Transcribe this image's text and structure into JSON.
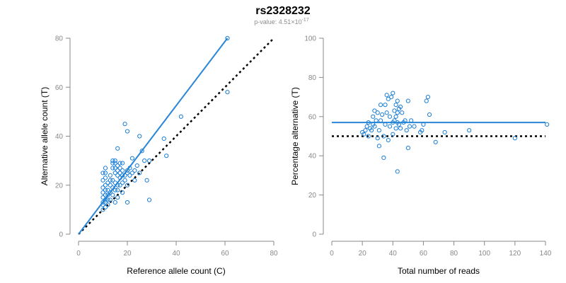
{
  "title": "rs2328232",
  "subtitle_prefix": "p-value: 4.51×10",
  "subtitle_exp": "-17",
  "colors": {
    "points": "#1a7ed6",
    "fit": "#2a86d8",
    "reference": "#000000"
  },
  "chart_data": [
    {
      "type": "scatter",
      "xlabel": "Reference allele count (C)",
      "ylabel": "Alternative allele count (T)",
      "xlim": [
        0,
        80
      ],
      "ylim": [
        0,
        80
      ],
      "xticks": [
        0,
        20,
        40,
        60,
        80
      ],
      "yticks": [
        0,
        20,
        40,
        60,
        80
      ],
      "points": [
        [
          10,
          10
        ],
        [
          10,
          12
        ],
        [
          10,
          13
        ],
        [
          10,
          15
        ],
        [
          10,
          17
        ],
        [
          10,
          19
        ],
        [
          10,
          22
        ],
        [
          10,
          25
        ],
        [
          11,
          11
        ],
        [
          11,
          13
        ],
        [
          11,
          14
        ],
        [
          11,
          16
        ],
        [
          11,
          18
        ],
        [
          11,
          20
        ],
        [
          11,
          23
        ],
        [
          11,
          25
        ],
        [
          11,
          27
        ],
        [
          12,
          12
        ],
        [
          12,
          14
        ],
        [
          12,
          16
        ],
        [
          12,
          18
        ],
        [
          12,
          21
        ],
        [
          13,
          14
        ],
        [
          13,
          17
        ],
        [
          13,
          20
        ],
        [
          13,
          22
        ],
        [
          13,
          24
        ],
        [
          14,
          16
        ],
        [
          14,
          19
        ],
        [
          14,
          22
        ],
        [
          14,
          27
        ],
        [
          14,
          29
        ],
        [
          14,
          30
        ],
        [
          15,
          13
        ],
        [
          15,
          18
        ],
        [
          15,
          21
        ],
        [
          15,
          25
        ],
        [
          15,
          27
        ],
        [
          15,
          29
        ],
        [
          15,
          30
        ],
        [
          16,
          15
        ],
        [
          16,
          18
        ],
        [
          16,
          20
        ],
        [
          16,
          24
        ],
        [
          16,
          26
        ],
        [
          16,
          28
        ],
        [
          16,
          35
        ],
        [
          17,
          20
        ],
        [
          17,
          23
        ],
        [
          17,
          25
        ],
        [
          17,
          27
        ],
        [
          17,
          29
        ],
        [
          18,
          17
        ],
        [
          18,
          21
        ],
        [
          18,
          24
        ],
        [
          18,
          26
        ],
        [
          18,
          29
        ],
        [
          19,
          22
        ],
        [
          19,
          24
        ],
        [
          19,
          45
        ],
        [
          20,
          13
        ],
        [
          20,
          20
        ],
        [
          20,
          25
        ],
        [
          20,
          26
        ],
        [
          20,
          42
        ],
        [
          21,
          24
        ],
        [
          21,
          27
        ],
        [
          22,
          25
        ],
        [
          22,
          31
        ],
        [
          23,
          22
        ],
        [
          23,
          26
        ],
        [
          24,
          28
        ],
        [
          25,
          25
        ],
        [
          25,
          40
        ],
        [
          26,
          34
        ],
        [
          27,
          30
        ],
        [
          28,
          22
        ],
        [
          29,
          14
        ],
        [
          29,
          30
        ],
        [
          35,
          39
        ],
        [
          36,
          32
        ],
        [
          42,
          48
        ],
        [
          61,
          58
        ],
        [
          61,
          80
        ]
      ],
      "fit_line": [
        [
          0,
          0
        ],
        [
          61,
          80
        ]
      ],
      "reference_line": [
        [
          0,
          0
        ],
        [
          80,
          80
        ]
      ]
    },
    {
      "type": "scatter",
      "xlabel": "Total number of reads",
      "ylabel": "Percentage alternative (T)",
      "xlim": [
        0,
        140
      ],
      "ylim": [
        0,
        100
      ],
      "xticks": [
        0,
        20,
        40,
        60,
        80,
        100,
        120,
        140
      ],
      "yticks": [
        0,
        20,
        40,
        60,
        80,
        100
      ],
      "points": [
        [
          20,
          52
        ],
        [
          21,
          51
        ],
        [
          22,
          53
        ],
        [
          23,
          55
        ],
        [
          24,
          50
        ],
        [
          24,
          57
        ],
        [
          25,
          54
        ],
        [
          26,
          53
        ],
        [
          27,
          56
        ],
        [
          27,
          60
        ],
        [
          28,
          63
        ],
        [
          28,
          55
        ],
        [
          29,
          58
        ],
        [
          30,
          49
        ],
        [
          30,
          62
        ],
        [
          31,
          45
        ],
        [
          31,
          53
        ],
        [
          32,
          58
        ],
        [
          32,
          66
        ],
        [
          33,
          61
        ],
        [
          34,
          39
        ],
        [
          34,
          50
        ],
        [
          35,
          56
        ],
        [
          35,
          66
        ],
        [
          36,
          62
        ],
        [
          36,
          71
        ],
        [
          37,
          48
        ],
        [
          37,
          69
        ],
        [
          38,
          55
        ],
        [
          38,
          60
        ],
        [
          39,
          70
        ],
        [
          40,
          51
        ],
        [
          40,
          57
        ],
        [
          40,
          72
        ],
        [
          41,
          58
        ],
        [
          41,
          63
        ],
        [
          42,
          54
        ],
        [
          42,
          60
        ],
        [
          42,
          66
        ],
        [
          43,
          32
        ],
        [
          43,
          57
        ],
        [
          43,
          62
        ],
        [
          43,
          68
        ],
        [
          44,
          56
        ],
        [
          44,
          64
        ],
        [
          45,
          54
        ],
        [
          45,
          65
        ],
        [
          46,
          62
        ],
        [
          47,
          57
        ],
        [
          48,
          58
        ],
        [
          49,
          53
        ],
        [
          50,
          44
        ],
        [
          50,
          68
        ],
        [
          51,
          55
        ],
        [
          52,
          58
        ],
        [
          54,
          55
        ],
        [
          58,
          52
        ],
        [
          59,
          53
        ],
        [
          60,
          56
        ],
        [
          62,
          68
        ],
        [
          63,
          70
        ],
        [
          64,
          61
        ],
        [
          68,
          47
        ],
        [
          74,
          52
        ],
        [
          90,
          53
        ],
        [
          120,
          49
        ],
        [
          141,
          56
        ]
      ],
      "fit_line": [
        [
          0,
          57
        ],
        [
          140,
          57
        ]
      ],
      "reference_line": [
        [
          0,
          50
        ],
        [
          140,
          50
        ]
      ]
    }
  ]
}
